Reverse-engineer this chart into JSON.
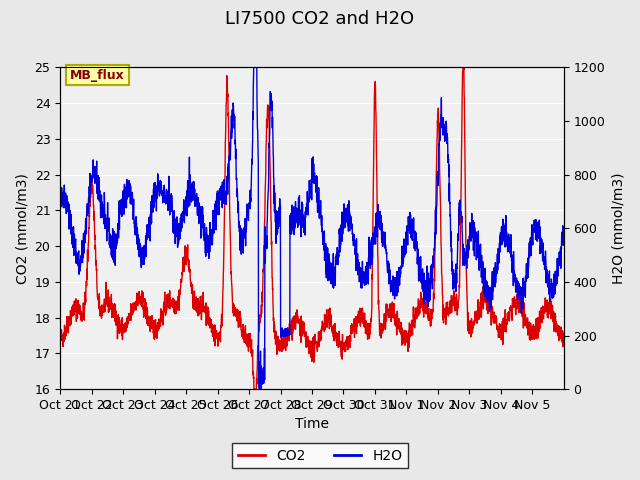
{
  "title": "LI7500 CO2 and H2O",
  "xlabel": "Time",
  "ylabel_left": "CO2 (mmol/m3)",
  "ylabel_right": "H2O (mmol/m3)",
  "ylim_left": [
    16.0,
    25.0
  ],
  "ylim_right": [
    0,
    1200
  ],
  "yticks_left": [
    16.0,
    17.0,
    18.0,
    19.0,
    20.0,
    21.0,
    22.0,
    23.0,
    24.0,
    25.0
  ],
  "yticks_right": [
    0,
    200,
    400,
    600,
    800,
    1000,
    1200
  ],
  "xtick_labels": [
    "Oct 21",
    "Oct 22",
    "Oct 23",
    "Oct 24",
    "Oct 25",
    "Oct 26",
    "Oct 27",
    "Oct 28",
    "Oct 29",
    "Oct 30",
    "Oct 31",
    "Nov 1",
    "Nov 2",
    "Nov 3",
    "Nov 4",
    "Nov 5"
  ],
  "co2_color": "#dd0000",
  "h2o_color": "#0000dd",
  "line_width": 1.0,
  "legend_label_co2": "CO2",
  "legend_label_h2o": "H2O",
  "annotation_text": "MB_flux",
  "annotation_bg": "#ffffaa",
  "annotation_border": "#aaaa00",
  "background_color": "#e8e8e8",
  "plot_bg_color": "#f0f0f0",
  "grid_color": "#ffffff",
  "title_fontsize": 13,
  "axis_fontsize": 10,
  "tick_fontsize": 9
}
